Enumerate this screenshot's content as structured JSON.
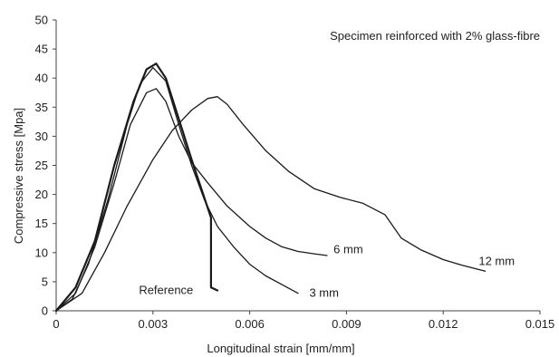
{
  "chart_data": {
    "type": "line",
    "title": "",
    "annotation": "Specimen reinforced with 2% glass-fibre",
    "xlabel": "Longitudinal strain [mm/mm]",
    "ylabel": "Compressive stress [Mpa]",
    "xlim": [
      0,
      0.015
    ],
    "ylim": [
      0,
      50
    ],
    "x_ticks": [
      0,
      0.003,
      0.006,
      0.009,
      0.012,
      0.015
    ],
    "x_tick_labels": [
      "0",
      "0.003",
      "0.006",
      "0.009",
      "0.012",
      "0.015"
    ],
    "y_ticks": [
      0,
      5,
      10,
      15,
      20,
      25,
      30,
      35,
      40,
      45,
      50
    ],
    "y_tick_labels": [
      "0",
      "5",
      "10",
      "15",
      "20",
      "25",
      "30",
      "35",
      "40",
      "45",
      "50"
    ],
    "grid": false,
    "legend": "none",
    "series": [
      {
        "name": "Reference",
        "color": "#1a1a1a",
        "points": [
          [
            0,
            0
          ],
          [
            0.0006,
            4
          ],
          [
            0.0012,
            12
          ],
          [
            0.0018,
            25
          ],
          [
            0.0024,
            36
          ],
          [
            0.0028,
            41.5
          ],
          [
            0.0031,
            42.5
          ],
          [
            0.0034,
            40
          ],
          [
            0.0038,
            33
          ],
          [
            0.0042,
            26
          ],
          [
            0.0045,
            21
          ],
          [
            0.0048,
            16
          ],
          [
            0.0048,
            4
          ],
          [
            0.005,
            3.5
          ]
        ]
      },
      {
        "name": "3 mm",
        "color": "#1a1a1a",
        "points": [
          [
            0,
            0
          ],
          [
            0.0005,
            2
          ],
          [
            0.001,
            8
          ],
          [
            0.0016,
            19
          ],
          [
            0.0022,
            32
          ],
          [
            0.0026,
            39
          ],
          [
            0.003,
            41.8
          ],
          [
            0.0034,
            39.5
          ],
          [
            0.0038,
            32
          ],
          [
            0.0042,
            25
          ],
          [
            0.0046,
            19
          ],
          [
            0.005,
            14.5
          ],
          [
            0.0055,
            11
          ],
          [
            0.006,
            8
          ],
          [
            0.0065,
            6
          ],
          [
            0.007,
            4.5
          ],
          [
            0.0075,
            3
          ]
        ]
      },
      {
        "name": "6 mm",
        "color": "#1a1a1a",
        "points": [
          [
            0,
            0
          ],
          [
            0.0006,
            3
          ],
          [
            0.0012,
            11
          ],
          [
            0.0018,
            22
          ],
          [
            0.0023,
            32
          ],
          [
            0.0028,
            37.5
          ],
          [
            0.0031,
            38.2
          ],
          [
            0.0034,
            36
          ],
          [
            0.0038,
            30
          ],
          [
            0.0042,
            25.5
          ],
          [
            0.0047,
            22
          ],
          [
            0.0053,
            18
          ],
          [
            0.006,
            14.5
          ],
          [
            0.0065,
            12.5
          ],
          [
            0.007,
            11
          ],
          [
            0.0075,
            10.2
          ],
          [
            0.008,
            9.8
          ],
          [
            0.0084,
            9.5
          ]
        ]
      },
      {
        "name": "12 mm",
        "color": "#1a1a1a",
        "points": [
          [
            0,
            0
          ],
          [
            0.0008,
            3
          ],
          [
            0.0015,
            10
          ],
          [
            0.0022,
            18
          ],
          [
            0.003,
            26
          ],
          [
            0.0036,
            31
          ],
          [
            0.0042,
            34.5
          ],
          [
            0.0047,
            36.5
          ],
          [
            0.005,
            36.8
          ],
          [
            0.0053,
            35.5
          ],
          [
            0.0058,
            32
          ],
          [
            0.0065,
            27.5
          ],
          [
            0.0072,
            24
          ],
          [
            0.008,
            21
          ],
          [
            0.0088,
            19.5
          ],
          [
            0.0095,
            18.5
          ],
          [
            0.0102,
            16.5
          ],
          [
            0.0107,
            12.5
          ],
          [
            0.0113,
            10.5
          ],
          [
            0.012,
            8.8
          ],
          [
            0.0126,
            7.8
          ],
          [
            0.0133,
            6.8
          ]
        ]
      }
    ],
    "series_labels": [
      {
        "text": "Reference",
        "x": 0.00425,
        "y": 3.5
      },
      {
        "text": "3 mm",
        "x": 0.00785,
        "y": 3.0
      },
      {
        "text": "6 mm",
        "x": 0.0086,
        "y": 10.5
      },
      {
        "text": "12 mm",
        "x": 0.0131,
        "y": 8.5
      }
    ]
  }
}
